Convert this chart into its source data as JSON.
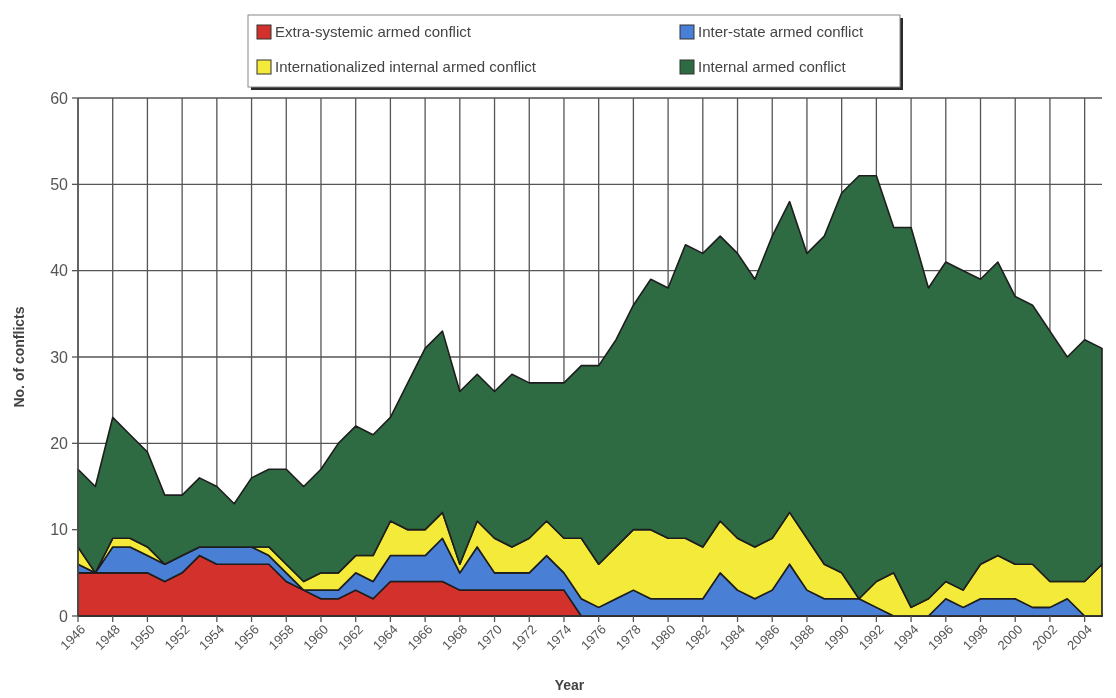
{
  "chart_data": {
    "type": "area",
    "stacked": true,
    "xlabel": "Year",
    "ylabel": "No. of conflicts",
    "x": [
      1946,
      1947,
      1948,
      1949,
      1950,
      1951,
      1952,
      1953,
      1954,
      1955,
      1956,
      1957,
      1958,
      1959,
      1960,
      1961,
      1962,
      1963,
      1964,
      1965,
      1966,
      1967,
      1968,
      1969,
      1970,
      1971,
      1972,
      1973,
      1974,
      1975,
      1976,
      1977,
      1978,
      1979,
      1980,
      1981,
      1982,
      1983,
      1984,
      1985,
      1986,
      1987,
      1988,
      1989,
      1990,
      1991,
      1992,
      1993,
      1994,
      1995,
      1996,
      1997,
      1998,
      1999,
      2000,
      2001,
      2002,
      2003,
      2004,
      2005
    ],
    "xlim": [
      1946,
      2005
    ],
    "xticks": [
      1946,
      1948,
      1950,
      1952,
      1954,
      1956,
      1958,
      1960,
      1962,
      1964,
      1966,
      1968,
      1970,
      1972,
      1974,
      1976,
      1978,
      1980,
      1982,
      1984,
      1986,
      1988,
      1990,
      1992,
      1994,
      1996,
      1998,
      2000,
      2002,
      2004
    ],
    "ylim": [
      0,
      60
    ],
    "yticks": [
      0,
      10,
      20,
      30,
      40,
      50,
      60
    ],
    "grid": true,
    "legend": "top",
    "series": [
      {
        "name": "Extra-systemic armed conflict",
        "color": "#d3312b",
        "values": [
          5,
          5,
          5,
          5,
          5,
          4,
          5,
          7,
          6,
          6,
          6,
          6,
          4,
          3,
          2,
          2,
          3,
          2,
          4,
          4,
          4,
          4,
          3,
          3,
          3,
          3,
          3,
          3,
          3,
          0,
          0,
          0,
          0,
          0,
          0,
          0,
          0,
          0,
          0,
          0,
          0,
          0,
          0,
          0,
          0,
          0,
          0,
          0,
          0,
          0,
          0,
          0,
          0,
          0,
          0,
          0,
          0,
          0,
          0,
          0
        ]
      },
      {
        "name": "Inter-state armed conflict",
        "color": "#4a7fd6",
        "values": [
          1,
          0,
          3,
          3,
          2,
          2,
          2,
          1,
          2,
          2,
          2,
          1,
          1,
          0,
          1,
          1,
          2,
          2,
          3,
          3,
          3,
          5,
          2,
          5,
          2,
          2,
          2,
          4,
          2,
          2,
          1,
          2,
          3,
          2,
          2,
          2,
          2,
          5,
          3,
          2,
          3,
          6,
          3,
          2,
          2,
          2,
          1,
          0,
          0,
          0,
          2,
          1,
          2,
          2,
          2,
          1,
          1,
          2,
          0,
          0
        ]
      },
      {
        "name": "Internationalized internal armed conflict",
        "color": "#f4ea3a",
        "values": [
          2,
          0,
          1,
          1,
          1,
          0,
          0,
          0,
          0,
          0,
          0,
          1,
          1,
          1,
          2,
          2,
          2,
          3,
          4,
          3,
          3,
          3,
          1,
          3,
          4,
          3,
          4,
          4,
          4,
          7,
          5,
          6,
          7,
          8,
          7,
          7,
          6,
          6,
          6,
          6,
          6,
          6,
          6,
          4,
          3,
          0,
          3,
          5,
          1,
          2,
          2,
          2,
          4,
          5,
          4,
          5,
          3,
          2,
          4,
          6
        ]
      },
      {
        "name": "Internal armed conflict",
        "color": "#2f6b42",
        "values": [
          9,
          10,
          14,
          12,
          11,
          8,
          7,
          8,
          7,
          5,
          8,
          9,
          11,
          11,
          12,
          15,
          15,
          14,
          12,
          17,
          21,
          21,
          20,
          17,
          17,
          20,
          18,
          16,
          18,
          20,
          23,
          24,
          26,
          29,
          29,
          34,
          34,
          33,
          33,
          31,
          35,
          36,
          33,
          38,
          44,
          49,
          47,
          40,
          44,
          36,
          37,
          37,
          33,
          34,
          31,
          30,
          29,
          26,
          28,
          25
        ]
      }
    ]
  }
}
